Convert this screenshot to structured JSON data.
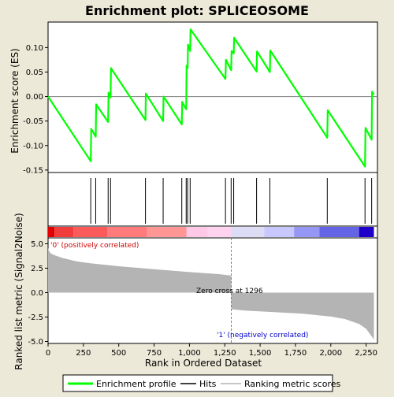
{
  "title": "Enrichment plot: SPLICEOSOME",
  "colors": {
    "background": "#ece9d8",
    "es_line": "#00ff00",
    "hits": "#000000",
    "metric_fill": "#b4b4b4",
    "zero_line": "#808080",
    "pos_label": "#cc0000",
    "neg_label": "#0000cc"
  },
  "chart_data": [
    {
      "type": "line",
      "name": "enrichment-score",
      "ylabel": "Enrichment score (ES)",
      "ylim": [
        -0.155,
        0.152
      ],
      "xlim": [
        0,
        2330
      ],
      "yticks": [
        -0.15,
        -0.1,
        -0.05,
        0.0,
        0.05,
        0.1
      ],
      "ytick_labels": [
        "-0.15",
        "-0.10",
        "-0.05",
        "0.00",
        "0.05",
        "0.10"
      ],
      "series": [
        {
          "name": "Enrichment profile",
          "x": [
            0,
            302,
            305,
            337,
            340,
            425,
            428,
            442,
            445,
            689,
            692,
            814,
            817,
            946,
            949,
            977,
            980,
            987,
            990,
            1005,
            1008,
            1255,
            1258,
            1295,
            1298,
            1313,
            1316,
            1475,
            1478,
            1569,
            1572,
            1975,
            1978,
            2242,
            2245,
            2289,
            2292,
            2305
          ],
          "y": [
            0.0,
            -0.132,
            -0.066,
            -0.082,
            -0.016,
            -0.052,
            0.008,
            -0.002,
            0.058,
            -0.048,
            0.006,
            -0.05,
            0.0,
            -0.057,
            -0.011,
            -0.026,
            0.063,
            0.058,
            0.106,
            0.093,
            0.137,
            0.036,
            0.075,
            0.054,
            0.093,
            0.088,
            0.12,
            0.051,
            0.092,
            0.05,
            0.094,
            -0.084,
            -0.028,
            -0.143,
            -0.064,
            -0.088,
            0.01,
            0.004
          ]
        }
      ]
    },
    {
      "type": "hits",
      "name": "hits",
      "x": [
        302,
        337,
        425,
        442,
        689,
        814,
        946,
        977,
        987,
        1005,
        1255,
        1295,
        1313,
        1475,
        1569,
        1975,
        2242,
        2289
      ]
    },
    {
      "type": "area",
      "name": "ranked-list-metric",
      "xlabel": "Rank in Ordered Dataset",
      "ylabel": "Ranked list metric (Signal2Noise)",
      "ylim": [
        -5.2,
        5.6
      ],
      "xlim": [
        0,
        2330
      ],
      "xticks": [
        0,
        250,
        500,
        750,
        1000,
        1250,
        1500,
        1750,
        2000,
        2250
      ],
      "xtick_labels": [
        "0",
        "250",
        "500",
        "750",
        "1,000",
        "1,250",
        "1,500",
        "1,750",
        "2,000",
        "2,250"
      ],
      "yticks": [
        -5.0,
        -2.5,
        0.0,
        2.5,
        5.0
      ],
      "ytick_labels": [
        "-5.0",
        "-2.5",
        "0.0",
        "2.5",
        "5.0"
      ],
      "x": [
        0,
        5,
        20,
        50,
        100,
        200,
        300,
        500,
        750,
        1000,
        1200,
        1295,
        1296,
        1400,
        1600,
        1800,
        2000,
        2100,
        2200,
        2250,
        2280,
        2305
      ],
      "y": [
        4.6,
        4.3,
        4.0,
        3.8,
        3.55,
        3.2,
        3.0,
        2.7,
        2.4,
        2.1,
        1.9,
        1.75,
        -1.7,
        -1.85,
        -2.0,
        -2.15,
        -2.45,
        -2.7,
        -3.2,
        -3.7,
        -4.3,
        -4.8
      ],
      "zero_cross": 1296
    }
  ],
  "annotations": {
    "pos_label": "'0' (positively correlated)",
    "neg_label": "'1' (negatively correlated)",
    "zero_cross": "Zero cross at 1296"
  },
  "legend": {
    "placement": "bottom",
    "items": [
      {
        "label": "Enrichment profile",
        "kind": "line",
        "color": "#00ff00"
      },
      {
        "label": "Hits",
        "kind": "line",
        "color": "#000000"
      },
      {
        "label": "Ranking metric scores",
        "kind": "line",
        "color": "#b4b4b4"
      }
    ]
  }
}
